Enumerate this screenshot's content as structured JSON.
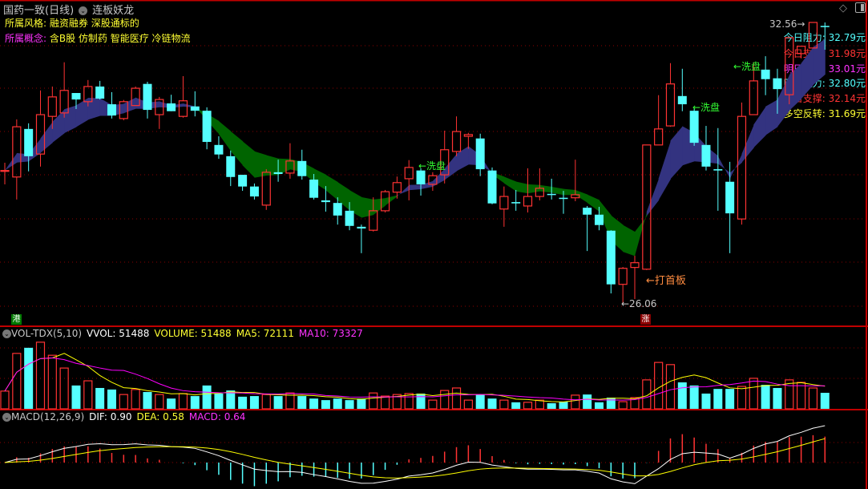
{
  "header": {
    "stock_title": "国药一致(日线)",
    "indicator_name": "连板妖龙",
    "style_label": "所属风格:",
    "style_value": "融资融券 深股通标的",
    "concept_label": "所属概念:",
    "concept_value": "含B股 仿制药 智能医疗 冷链物流"
  },
  "levels": [
    {
      "label": "今日阻力:",
      "value": "32.79元",
      "color": "#55ffff"
    },
    {
      "label": "今日支撑:",
      "value": "31.98元",
      "color": "#ff3333"
    },
    {
      "label": "明日压力:",
      "value": "33.01元",
      "color": "#ff33ff"
    },
    {
      "label": "明日阻力:",
      "value": "32.80元",
      "color": "#55ffff"
    },
    {
      "label": "明日支撑:",
      "value": "32.14元",
      "color": "#ff3333"
    },
    {
      "label": "多空反转:",
      "value": "31.69元",
      "color": "#ffff33"
    }
  ],
  "annotations": {
    "wash1": "←洗盘",
    "wash2": "←洗盘",
    "wash3": "←洗盘",
    "first_board": "←打首板",
    "low_mark": "←26.06",
    "high_mark": "32.56",
    "hk_badge": "港",
    "limit_badge": "涨"
  },
  "volume_panel": {
    "name": "VOL-TDX(5,10)",
    "vvol": "VVOL: 51488",
    "volume": "VOLUME: 51488",
    "ma5": "MA5: 72111",
    "ma10": "MA10: 73327"
  },
  "macd_panel": {
    "name": "MACD(12,26,9)",
    "dif": "DIF: 0.90",
    "dea": "DEA: 0.58",
    "macd": "MACD: 0.64"
  },
  "colors": {
    "up": "#ff3333",
    "down": "#55ffff",
    "ribbon_up": "#333380",
    "ribbon_down": "#006400",
    "ma5": "#ffff00",
    "ma10": "#ff00ff",
    "dif": "#ffffff",
    "dea": "#ffff00",
    "grid": "#8b0000"
  },
  "chart_data": {
    "type": "candlestick",
    "price_range": [
      26.06,
      32.56
    ],
    "candles_ohlc_note": "each candle is [open, close, high, low]",
    "candles": [
      [
        29.12,
        29.14,
        29.32,
        28.82
      ],
      [
        28.99,
        30.15,
        30.32,
        28.47
      ],
      [
        30.1,
        29.47,
        30.23,
        29.12
      ],
      [
        29.52,
        30.43,
        30.99,
        29.23
      ],
      [
        30.39,
        30.84,
        31.08,
        30.1
      ],
      [
        30.47,
        30.99,
        31.64,
        30.36
      ],
      [
        30.93,
        30.78,
        30.93,
        30.56
      ],
      [
        30.73,
        31.08,
        31.23,
        30.62
      ],
      [
        31.08,
        30.8,
        31.21,
        30.78
      ],
      [
        30.67,
        30.41,
        30.95,
        30.34
      ],
      [
        30.34,
        30.73,
        30.77,
        30.3
      ],
      [
        30.64,
        31.04,
        31.08,
        30.64
      ],
      [
        31.14,
        30.54,
        31.19,
        30.34
      ],
      [
        30.43,
        30.78,
        30.84,
        30.1
      ],
      [
        30.69,
        30.51,
        30.89,
        30.51
      ],
      [
        30.39,
        30.75,
        31.32,
        30.36
      ],
      [
        30.62,
        30.52,
        30.97,
        30.39
      ],
      [
        30.52,
        29.8,
        30.6,
        29.63
      ],
      [
        29.73,
        29.51,
        29.93,
        29.41
      ],
      [
        29.47,
        28.99,
        29.6,
        28.78
      ],
      [
        29.04,
        28.77,
        29.04,
        28.67
      ],
      [
        28.77,
        28.54,
        28.84,
        28.47
      ],
      [
        28.34,
        29.1,
        29.17,
        28.23
      ],
      [
        29.1,
        29.06,
        29.39,
        28.88
      ],
      [
        29.08,
        29.36,
        29.77,
        28.95
      ],
      [
        29.36,
        29.01,
        29.62,
        28.93
      ],
      [
        28.93,
        28.51,
        29.06,
        28.47
      ],
      [
        28.45,
        28.41,
        28.78,
        28.19
      ],
      [
        28.39,
        28.1,
        28.52,
        27.89
      ],
      [
        28.21,
        27.86,
        28.41,
        27.76
      ],
      [
        27.84,
        27.8,
        27.89,
        27.23
      ],
      [
        27.76,
        28.21,
        28.52,
        27.73
      ],
      [
        28.21,
        28.65,
        28.69,
        28.17
      ],
      [
        28.64,
        28.86,
        29.0,
        28.49
      ],
      [
        28.95,
        29.21,
        29.38,
        28.45
      ],
      [
        29.14,
        28.82,
        29.19,
        28.56
      ],
      [
        28.82,
        29.02,
        29.1,
        28.67
      ],
      [
        29.04,
        29.62,
        30.06,
        28.84
      ],
      [
        29.58,
        30.04,
        30.39,
        29.47
      ],
      [
        29.93,
        29.97,
        30.01,
        29.64
      ],
      [
        29.88,
        29.17,
        29.99,
        29.01
      ],
      [
        29.14,
        28.38,
        29.21,
        28.36
      ],
      [
        28.25,
        28.54,
        28.77,
        27.84
      ],
      [
        28.41,
        28.38,
        28.69,
        28.21
      ],
      [
        28.32,
        28.54,
        29.19,
        28.17
      ],
      [
        28.54,
        28.73,
        29.19,
        28.45
      ],
      [
        28.6,
        28.58,
        28.95,
        28.47
      ],
      [
        28.51,
        28.49,
        28.67,
        28.14
      ],
      [
        28.51,
        28.58,
        29.39,
        28.43
      ],
      [
        28.28,
        28.12,
        28.32,
        27.28
      ],
      [
        28.12,
        27.88,
        28.3,
        27.76
      ],
      [
        27.75,
        26.51,
        27.76,
        26.3
      ],
      [
        26.51,
        26.88,
        26.91,
        26.06
      ],
      [
        26.9,
        27.01,
        27.17,
        26.17
      ],
      [
        26.86,
        29.73,
        29.73,
        26.84
      ],
      [
        29.73,
        30.1,
        30.88,
        29.73
      ],
      [
        30.17,
        31.14,
        31.62,
        30.15
      ],
      [
        30.86,
        30.67,
        31.49,
        30.51
      ],
      [
        30.52,
        29.78,
        30.56,
        29.71
      ],
      [
        29.73,
        29.23,
        30.17,
        29.14
      ],
      [
        29.17,
        29.14,
        30.12,
        28.21
      ],
      [
        28.88,
        28.15,
        29.34,
        27.23
      ],
      [
        28.02,
        30.39,
        30.71,
        27.89
      ],
      [
        30.43,
        31.21,
        31.64,
        30.43
      ],
      [
        31.47,
        31.25,
        31.78,
        30.88
      ],
      [
        31.27,
        31.02,
        31.49,
        30.45
      ],
      [
        30.89,
        32.21,
        32.21,
        30.67
      ],
      [
        31.84,
        32.01,
        32.01,
        31.73
      ],
      [
        31.97,
        32.56,
        32.56,
        31.97
      ],
      [
        32.48,
        32.46,
        32.56,
        31.93
      ]
    ],
    "volume": [
      57000,
      178000,
      196000,
      214000,
      172000,
      131000,
      75000,
      90000,
      67000,
      62000,
      46000,
      62000,
      54000,
      46000,
      33000,
      49000,
      41000,
      75000,
      49000,
      59000,
      39000,
      41000,
      46000,
      41000,
      51000,
      41000,
      33000,
      28000,
      33000,
      28000,
      33000,
      51000,
      41000,
      46000,
      49000,
      49000,
      28000,
      59000,
      67000,
      28000,
      46000,
      33000,
      28000,
      21000,
      21000,
      28000,
      18000,
      23000,
      44000,
      46000,
      21000,
      36000,
      23000,
      36000,
      93000,
      149000,
      142000,
      85000,
      75000,
      49000,
      64000,
      64000,
      72000,
      98000,
      77000,
      67000,
      93000,
      85000,
      67000,
      51488
    ]
  }
}
